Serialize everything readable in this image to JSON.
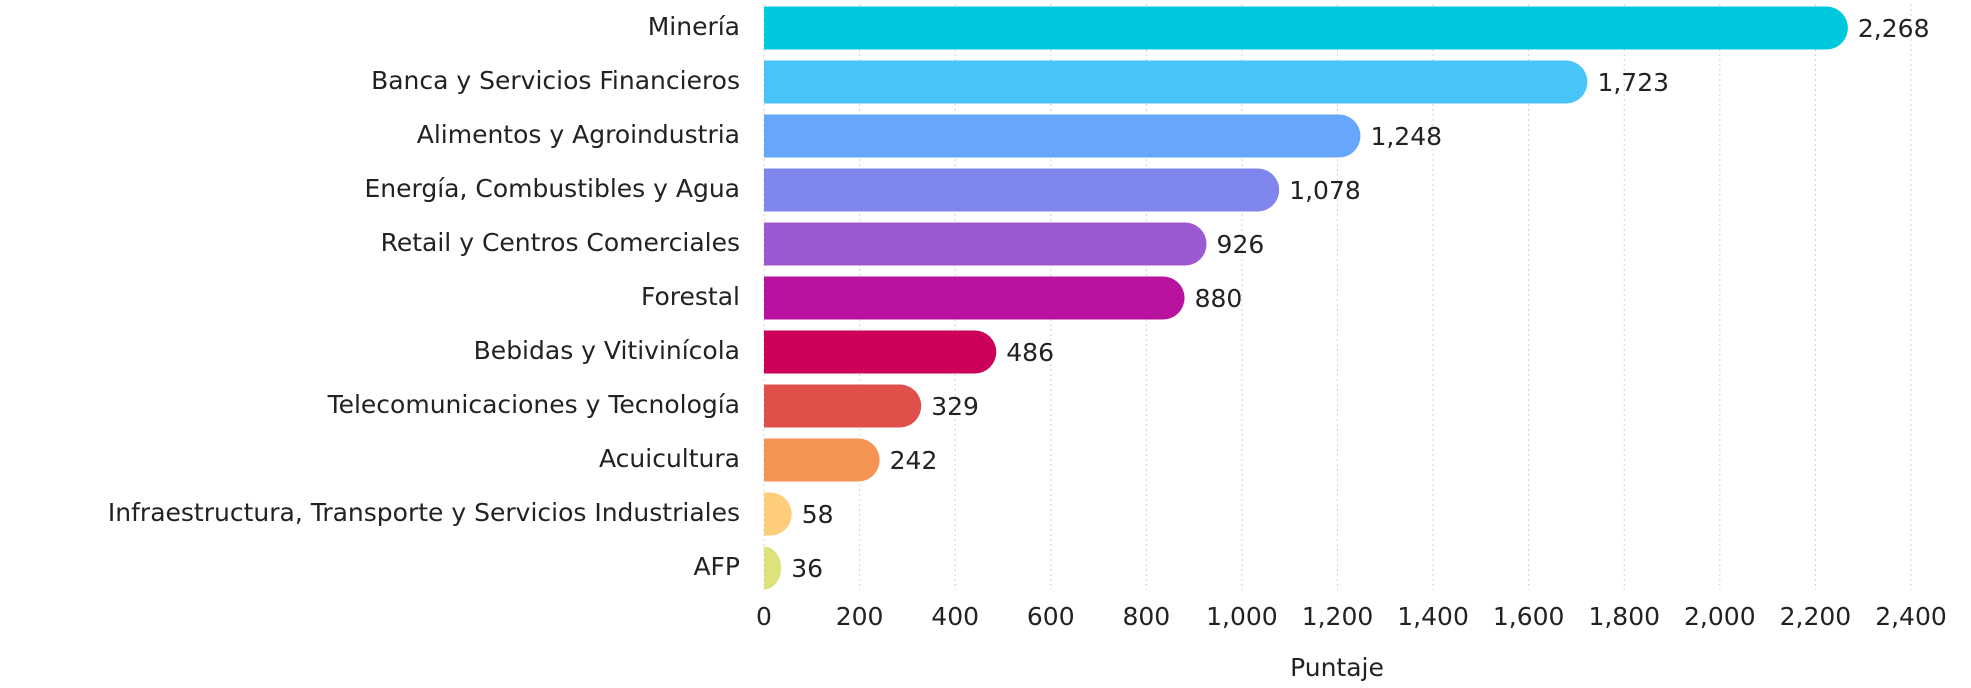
{
  "chart_data": {
    "type": "bar",
    "orientation": "horizontal",
    "categories": [
      "Minería",
      "Banca y Servicios Financieros",
      "Alimentos y Agroindustria",
      "Energía, Combustibles y Agua",
      "Retail y Centros Comerciales",
      "Forestal",
      "Bebidas y Vitivinícola",
      "Telecomunicaciones y Tecnología",
      "Acuicultura",
      "Infraestructura, Transporte y Servicios Industriales",
      "AFP"
    ],
    "values": [
      2268,
      1723,
      1248,
      1078,
      926,
      880,
      486,
      329,
      242,
      58,
      36
    ],
    "value_labels": [
      "2,268",
      "1,723",
      "1,248",
      "1,078",
      "926",
      "880",
      "486",
      "329",
      "242",
      "58",
      "36"
    ],
    "colors": [
      "#00c8dc",
      "#48c4f8",
      "#66a6fc",
      "#7f86ee",
      "#9b59d0",
      "#b8129e",
      "#cc0058",
      "#e0504a",
      "#f59352",
      "#fdcd7c",
      "#dde27a"
    ],
    "xlabel": "Puntaje",
    "xlim": [
      0,
      2400
    ],
    "xticks": [
      0,
      200,
      400,
      600,
      800,
      {
        "value": 1000,
        "label": "1,000"
      },
      {
        "value": 1200,
        "label": "1,200"
      },
      {
        "value": 1400,
        "label": "1,400"
      },
      {
        "value": 1600,
        "label": "1,600"
      },
      {
        "value": 1800,
        "label": "1,800"
      },
      {
        "value": 2000,
        "label": "2,000"
      },
      {
        "value": 2200,
        "label": "2,200"
      },
      {
        "value": 2400,
        "label": "2,400"
      }
    ],
    "grid": true
  }
}
